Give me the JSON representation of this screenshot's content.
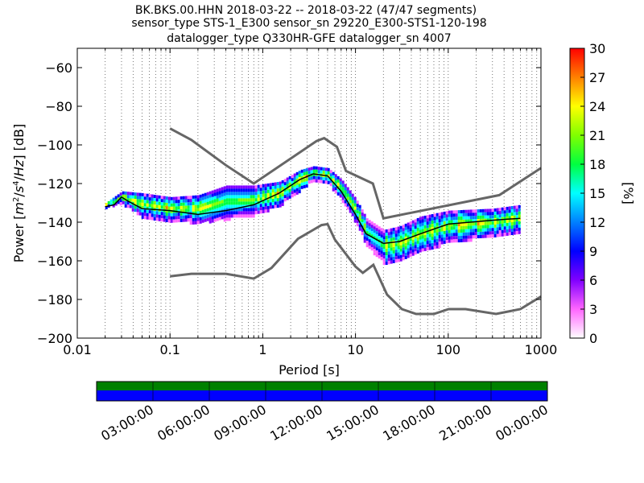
{
  "title_lines": [
    "BK.BKS.00.HHN   2018-03-22 -- 2018-03-22  (47/47 segments)",
    "sensor_type STS-1_E300 sensor_sn 29220_E300-STS1-120-198",
    "datalogger_type Q330HR-GFE datalogger_sn 4007"
  ],
  "chart_data": {
    "type": "heatmap",
    "xlabel": "Period [s]",
    "ylabel": "Power [m²/s⁴/Hz] [dB]",
    "xscale": "log",
    "xlim": [
      0.01,
      1000
    ],
    "ylim": [
      -200,
      -50
    ],
    "x_ticks": [
      0.01,
      0.1,
      1,
      10,
      100,
      1000
    ],
    "x_tick_labels": [
      "0.01",
      "0.1",
      "1",
      "10",
      "100",
      "1000"
    ],
    "y_ticks": [
      -200,
      -180,
      -160,
      -140,
      -120,
      -100,
      -80,
      -60
    ],
    "y_tick_labels": [
      "−200",
      "−180",
      "−160",
      "−140",
      "−120",
      "−100",
      "−80",
      "−60"
    ],
    "grid": "dotted vertical at period decades",
    "colorbar": {
      "label": "[%]",
      "range": [
        0,
        30
      ],
      "ticks": [
        "0",
        "3",
        "6",
        "9",
        "12",
        "15",
        "18",
        "21",
        "24",
        "27",
        "30"
      ],
      "colormap": [
        "#ffffff",
        "#ff66ff",
        "#8000ff",
        "#0000ff",
        "#0080ff",
        "#00ffff",
        "#00ff40",
        "#80ff00",
        "#ffff00",
        "#ff8000",
        "#ff0000"
      ]
    },
    "series": [
      {
        "role": "upper noise model",
        "color": "#666666",
        "points": [
          [
            0.1,
            -91.5
          ],
          [
            0.17,
            -97.4
          ],
          [
            0.4,
            -110.5
          ],
          [
            0.8,
            -120
          ],
          [
            3.8,
            -98
          ],
          [
            4.6,
            -96.5
          ],
          [
            6.3,
            -101
          ],
          [
            7.9,
            -113.5
          ],
          [
            15.4,
            -120
          ],
          [
            20,
            -138
          ],
          [
            354.8,
            -126
          ],
          [
            1000,
            -112
          ]
        ]
      },
      {
        "role": "lower noise model",
        "color": "#666666",
        "points": [
          [
            0.1,
            -168
          ],
          [
            0.17,
            -166.7
          ],
          [
            0.4,
            -166.7
          ],
          [
            0.8,
            -169.2
          ],
          [
            1.24,
            -163.7
          ],
          [
            2.4,
            -148.6
          ],
          [
            4.3,
            -141.5
          ],
          [
            5,
            -141
          ],
          [
            6,
            -149
          ],
          [
            10,
            -163
          ],
          [
            12,
            -166.2
          ],
          [
            15.6,
            -162.1
          ],
          [
            21.9,
            -177.5
          ],
          [
            31.6,
            -185
          ],
          [
            45,
            -187.5
          ],
          [
            70,
            -187.5
          ],
          [
            101,
            -185
          ],
          [
            154,
            -185
          ],
          [
            328,
            -187.5
          ],
          [
            600,
            -185
          ],
          [
            1000,
            -178.5
          ]
        ]
      },
      {
        "role": "median",
        "color": "#000000",
        "points": [
          [
            0.02,
            -132
          ],
          [
            0.025,
            -131
          ],
          [
            0.03,
            -127
          ],
          [
            0.035,
            -129
          ],
          [
            0.05,
            -133
          ],
          [
            0.1,
            -134
          ],
          [
            0.2,
            -136
          ],
          [
            0.4,
            -134
          ],
          [
            0.8,
            -131
          ],
          [
            1.5,
            -125
          ],
          [
            2.5,
            -118
          ],
          [
            3.5,
            -115
          ],
          [
            5,
            -116
          ],
          [
            7,
            -124
          ],
          [
            10,
            -136
          ],
          [
            13,
            -146
          ],
          [
            20,
            -151
          ],
          [
            30,
            -150
          ],
          [
            50,
            -146
          ],
          [
            100,
            -141
          ],
          [
            300,
            -139
          ],
          [
            600,
            -138
          ]
        ]
      }
    ],
    "density_band": [
      {
        "x": 0.02,
        "lo": -132,
        "hi": -130
      },
      {
        "x": 0.03,
        "lo": -130,
        "hi": -124
      },
      {
        "x": 0.05,
        "lo": -137,
        "hi": -125
      },
      {
        "x": 0.1,
        "lo": -139,
        "hi": -127
      },
      {
        "x": 0.2,
        "lo": -140,
        "hi": -126
      },
      {
        "x": 0.4,
        "lo": -138,
        "hi": -121
      },
      {
        "x": 0.8,
        "lo": -136,
        "hi": -121
      },
      {
        "x": 1.5,
        "lo": -131,
        "hi": -119
      },
      {
        "x": 2.5,
        "lo": -123,
        "hi": -113
      },
      {
        "x": 3.5,
        "lo": -118,
        "hi": -111
      },
      {
        "x": 5,
        "lo": -120,
        "hi": -112
      },
      {
        "x": 7,
        "lo": -128,
        "hi": -118
      },
      {
        "x": 10,
        "lo": -140,
        "hi": -128
      },
      {
        "x": 13,
        "lo": -152,
        "hi": -138
      },
      {
        "x": 20,
        "lo": -161,
        "hi": -144
      },
      {
        "x": 30,
        "lo": -160,
        "hi": -142
      },
      {
        "x": 50,
        "lo": -155,
        "hi": -137
      },
      {
        "x": 100,
        "lo": -150,
        "hi": -134
      },
      {
        "x": 300,
        "lo": -147,
        "hi": -133
      },
      {
        "x": 600,
        "lo": -145,
        "hi": -131
      }
    ]
  },
  "timeline": {
    "bands": [
      {
        "name": "coverage",
        "color": "#008000"
      },
      {
        "name": "gaps",
        "color": "#0000ff"
      }
    ],
    "tick_labels": [
      "03:00:00",
      "06:00:00",
      "09:00:00",
      "12:00:00",
      "15:00:00",
      "18:00:00",
      "21:00:00",
      "00:00:00"
    ]
  }
}
